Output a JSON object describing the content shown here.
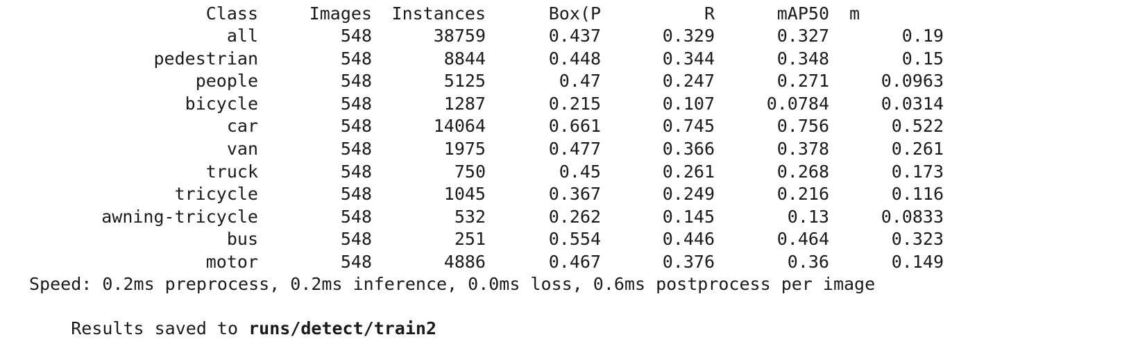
{
  "table": {
    "headers": [
      "Class",
      "Images",
      "Instances",
      "Box(P",
      "R",
      "mAP50",
      "m"
    ],
    "rows": [
      [
        "all",
        "548",
        "38759",
        "0.437",
        "0.329",
        "0.327",
        "0.19"
      ],
      [
        "pedestrian",
        "548",
        "8844",
        "0.448",
        "0.344",
        "0.348",
        "0.15"
      ],
      [
        "people",
        "548",
        "5125",
        "0.47",
        "0.247",
        "0.271",
        "0.0963"
      ],
      [
        "bicycle",
        "548",
        "1287",
        "0.215",
        "0.107",
        "0.0784",
        "0.0314"
      ],
      [
        "car",
        "548",
        "14064",
        "0.661",
        "0.745",
        "0.756",
        "0.522"
      ],
      [
        "van",
        "548",
        "1975",
        "0.477",
        "0.366",
        "0.378",
        "0.261"
      ],
      [
        "truck",
        "548",
        "750",
        "0.45",
        "0.261",
        "0.268",
        "0.173"
      ],
      [
        "tricycle",
        "548",
        "1045",
        "0.367",
        "0.249",
        "0.216",
        "0.116"
      ],
      [
        "awning-tricycle",
        "548",
        "532",
        "0.262",
        "0.145",
        "0.13",
        "0.0833"
      ],
      [
        "bus",
        "548",
        "251",
        "0.554",
        "0.446",
        "0.464",
        "0.323"
      ],
      [
        "motor",
        "548",
        "4886",
        "0.467",
        "0.376",
        "0.36",
        "0.149"
      ]
    ]
  },
  "speed_line": "Speed: 0.2ms preprocess, 0.2ms inference, 0.0ms loss, 0.6ms postprocess per image",
  "results": {
    "prefix": "Results saved to ",
    "path": "runs/detect/train2"
  },
  "colors": {
    "background": "#ffffff",
    "text": "#1a1a1a"
  }
}
